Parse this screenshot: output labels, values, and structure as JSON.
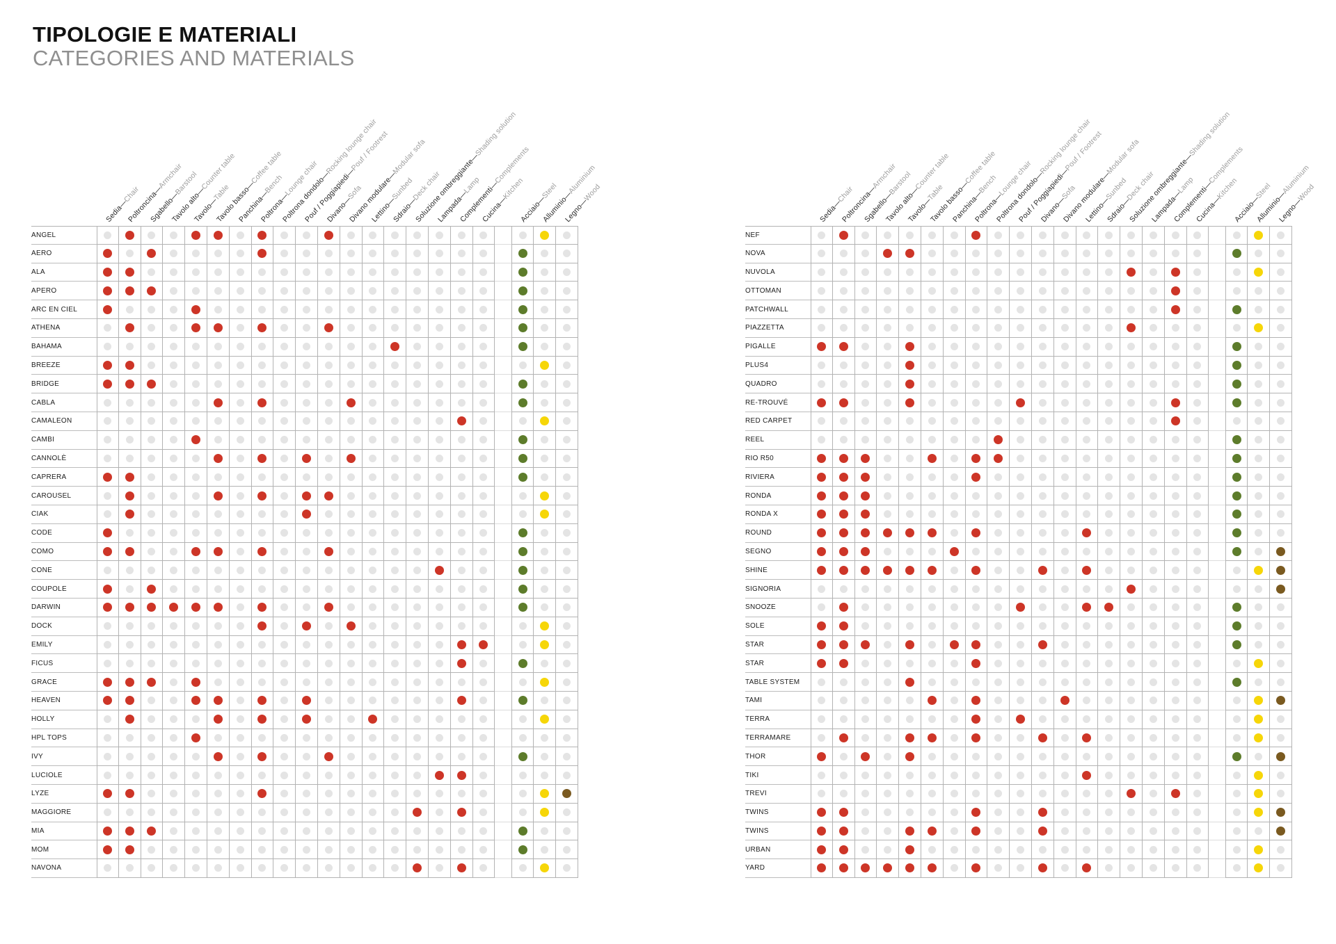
{
  "title": {
    "it": "TIPOLOGIE E MATERIALI",
    "en": "CATEGORIES AND MATERIALS"
  },
  "dot_colors": {
    "active": "#cd3527",
    "inactive": "#e4e4e4"
  },
  "columns": [
    {
      "it": "Sedia",
      "en": "Chair"
    },
    {
      "it": "Poltroncina",
      "en": "Armchair"
    },
    {
      "it": "Sgabello",
      "en": "Barstool"
    },
    {
      "it": "Tavolo alto",
      "en": "Counter table"
    },
    {
      "it": "Tavolo",
      "en": "Table"
    },
    {
      "it": "Tavolo basso",
      "en": "Coffee table"
    },
    {
      "it": "Panchina",
      "en": "Bench"
    },
    {
      "it": "Poltrona",
      "en": "Lounge chair"
    },
    {
      "it": "Poltrona dondolo",
      "en": "Rocking lounge chair"
    },
    {
      "it": "Pouf / Poggiapiedi",
      "en": "Pouf / Footrest"
    },
    {
      "it": "Divano",
      "en": "Sofa"
    },
    {
      "it": "Divano modulare",
      "en": "Modular sofa"
    },
    {
      "it": "Lettino",
      "en": "Sunbed"
    },
    {
      "it": "Sdraio",
      "en": "Deck chair"
    },
    {
      "it": "Soluzione ombreggiante",
      "en": "Shading solution"
    },
    {
      "it": "Lampada",
      "en": "Lamp"
    },
    {
      "it": "Complementi",
      "en": "Complements"
    },
    {
      "it": "Cucina",
      "en": "Kitchen"
    }
  ],
  "material_columns": [
    {
      "it": "Acciaio",
      "en": "Steel",
      "color": "#5d7c2b"
    },
    {
      "it": "Alluminio",
      "en": "Aluminium",
      "color": "#f6d608"
    },
    {
      "it": "Legno",
      "en": "Wood",
      "color": "#7a5a20"
    }
  ],
  "tables": [
    {
      "id": "left",
      "rows": [
        {
          "name": "ANGEL",
          "categories": [
            2,
            5,
            6,
            8,
            11
          ],
          "materials": [
            2
          ]
        },
        {
          "name": "AERO",
          "categories": [
            1,
            3,
            8
          ],
          "materials": [
            1
          ]
        },
        {
          "name": "ALA",
          "categories": [
            1,
            2
          ],
          "materials": [
            1
          ]
        },
        {
          "name": "APERO",
          "categories": [
            1,
            2,
            3
          ],
          "materials": [
            1
          ]
        },
        {
          "name": "ARC EN CIEL",
          "categories": [
            1,
            5
          ],
          "materials": [
            1
          ]
        },
        {
          "name": "ATHENA",
          "categories": [
            2,
            5,
            6,
            8,
            11
          ],
          "materials": [
            1
          ]
        },
        {
          "name": "BAHAMA",
          "categories": [
            14
          ],
          "materials": [
            1
          ]
        },
        {
          "name": "BREEZE",
          "categories": [
            1,
            2
          ],
          "materials": [
            2
          ]
        },
        {
          "name": "BRIDGE",
          "categories": [
            1,
            2,
            3
          ],
          "materials": [
            1
          ]
        },
        {
          "name": "CABLA",
          "categories": [
            6,
            8,
            12
          ],
          "materials": [
            1
          ]
        },
        {
          "name": "CAMALEON",
          "categories": [
            17
          ],
          "materials": [
            2
          ]
        },
        {
          "name": "CAMBI",
          "categories": [
            5
          ],
          "materials": [
            1
          ]
        },
        {
          "name": "CANNOLÈ",
          "categories": [
            6,
            8,
            10,
            12
          ],
          "materials": [
            1
          ]
        },
        {
          "name": "CAPRERA",
          "categories": [
            1,
            2
          ],
          "materials": [
            1
          ]
        },
        {
          "name": "CAROUSEL",
          "categories": [
            2,
            6,
            8,
            10,
            11
          ],
          "materials": [
            2
          ]
        },
        {
          "name": "CIAK",
          "categories": [
            2,
            10
          ],
          "materials": [
            2
          ]
        },
        {
          "name": "CODE",
          "categories": [
            1
          ],
          "materials": [
            1
          ]
        },
        {
          "name": "COMO",
          "categories": [
            1,
            2,
            5,
            6,
            8,
            11
          ],
          "materials": [
            1
          ]
        },
        {
          "name": "CONE",
          "categories": [
            16
          ],
          "materials": [
            1
          ]
        },
        {
          "name": "COUPOLE",
          "categories": [
            1,
            3
          ],
          "materials": [
            1
          ]
        },
        {
          "name": "DARWIN",
          "categories": [
            1,
            2,
            3,
            4,
            5,
            6,
            8,
            11
          ],
          "materials": [
            1
          ]
        },
        {
          "name": "DOCK",
          "categories": [
            8,
            10,
            12
          ],
          "materials": [
            2
          ]
        },
        {
          "name": "EMILY",
          "categories": [
            17,
            18
          ],
          "materials": [
            2
          ]
        },
        {
          "name": "FICUS",
          "categories": [
            17
          ],
          "materials": [
            1
          ]
        },
        {
          "name": "GRACE",
          "categories": [
            1,
            2,
            3,
            5
          ],
          "materials": [
            2
          ]
        },
        {
          "name": "HEAVEN",
          "categories": [
            1,
            2,
            5,
            6,
            8,
            10,
            17
          ],
          "materials": [
            1
          ]
        },
        {
          "name": "HOLLY",
          "categories": [
            2,
            6,
            8,
            10,
            13
          ],
          "materials": [
            2
          ]
        },
        {
          "name": "HPL TOPS",
          "categories": [
            5
          ],
          "materials": []
        },
        {
          "name": "IVY",
          "categories": [
            6,
            8,
            11
          ],
          "materials": [
            1
          ]
        },
        {
          "name": "LUCIOLE",
          "categories": [
            16,
            17
          ],
          "materials": []
        },
        {
          "name": "LYZE",
          "categories": [
            1,
            2,
            8
          ],
          "materials": [
            2,
            3
          ]
        },
        {
          "name": "MAGGIORE",
          "categories": [
            15,
            17
          ],
          "materials": [
            2
          ]
        },
        {
          "name": "MIA",
          "categories": [
            1,
            2,
            3
          ],
          "materials": [
            1
          ]
        },
        {
          "name": "MOM",
          "categories": [
            1,
            2
          ],
          "materials": [
            1
          ]
        },
        {
          "name": "NAVONA",
          "categories": [
            15,
            17
          ],
          "materials": [
            2
          ]
        }
      ]
    },
    {
      "id": "right",
      "rows": [
        {
          "name": "NEF",
          "categories": [
            2,
            8
          ],
          "materials": [
            2
          ]
        },
        {
          "name": "NOVA",
          "categories": [
            4,
            5
          ],
          "materials": [
            1
          ]
        },
        {
          "name": "NUVOLA",
          "categories": [
            15,
            17
          ],
          "materials": [
            2
          ]
        },
        {
          "name": "OTTOMAN",
          "categories": [
            17
          ],
          "materials": []
        },
        {
          "name": "PATCHWALL",
          "categories": [
            17
          ],
          "materials": [
            1
          ]
        },
        {
          "name": "PIAZZETTA",
          "categories": [
            15
          ],
          "materials": [
            2
          ]
        },
        {
          "name": "PIGALLE",
          "categories": [
            1,
            2,
            5
          ],
          "materials": [
            1
          ]
        },
        {
          "name": "PLUS4",
          "categories": [
            5
          ],
          "materials": [
            1
          ]
        },
        {
          "name": "QUADRO",
          "categories": [
            5
          ],
          "materials": [
            1
          ]
        },
        {
          "name": "RE-TROUVÉ",
          "categories": [
            1,
            2,
            5,
            10,
            17
          ],
          "materials": [
            1
          ]
        },
        {
          "name": "RED CARPET",
          "categories": [
            17
          ],
          "materials": []
        },
        {
          "name": "REEL",
          "categories": [
            9
          ],
          "materials": [
            1
          ]
        },
        {
          "name": "RIO R50",
          "categories": [
            1,
            2,
            3,
            6,
            8,
            9
          ],
          "materials": [
            1
          ]
        },
        {
          "name": "RIVIERA",
          "categories": [
            1,
            2,
            3,
            8
          ],
          "materials": [
            1
          ]
        },
        {
          "name": "RONDA",
          "categories": [
            1,
            2,
            3
          ],
          "materials": [
            1
          ]
        },
        {
          "name": "RONDA X",
          "categories": [
            1,
            2,
            3
          ],
          "materials": [
            1
          ]
        },
        {
          "name": "ROUND",
          "categories": [
            1,
            2,
            3,
            4,
            5,
            6,
            8,
            13
          ],
          "materials": [
            1
          ]
        },
        {
          "name": "SEGNO",
          "categories": [
            1,
            2,
            3,
            7
          ],
          "materials": [
            1,
            3
          ]
        },
        {
          "name": "SHINE",
          "categories": [
            1,
            2,
            3,
            4,
            5,
            6,
            8,
            11,
            13
          ],
          "materials": [
            2,
            3
          ]
        },
        {
          "name": "SIGNORIA",
          "categories": [
            15
          ],
          "materials": [
            3
          ]
        },
        {
          "name": "SNOOZE",
          "categories": [
            2,
            10,
            13,
            14
          ],
          "materials": [
            1
          ]
        },
        {
          "name": "SOLE",
          "categories": [
            1,
            2
          ],
          "materials": [
            1
          ]
        },
        {
          "name": "STAR",
          "categories": [
            1,
            2,
            3,
            5,
            7,
            8,
            11
          ],
          "materials": [
            1
          ]
        },
        {
          "name": "STAR",
          "categories": [
            1,
            2,
            8
          ],
          "materials": [
            2
          ]
        },
        {
          "name": "TABLE SYSTEM",
          "categories": [
            5
          ],
          "materials": [
            1
          ]
        },
        {
          "name": "TAMI",
          "categories": [
            6,
            8,
            12
          ],
          "materials": [
            2,
            3
          ]
        },
        {
          "name": "TERRA",
          "categories": [
            8,
            10
          ],
          "materials": [
            2
          ]
        },
        {
          "name": "TERRAMARE",
          "categories": [
            2,
            5,
            6,
            8,
            11,
            13
          ],
          "materials": [
            2
          ]
        },
        {
          "name": "THOR",
          "categories": [
            1,
            3,
            5
          ],
          "materials": [
            1,
            3
          ]
        },
        {
          "name": "TIKI",
          "categories": [
            13
          ],
          "materials": [
            2
          ]
        },
        {
          "name": "TREVI",
          "categories": [
            15,
            17
          ],
          "materials": [
            2
          ]
        },
        {
          "name": "TWINS",
          "categories": [
            1,
            2,
            8,
            11
          ],
          "materials": [
            2,
            3
          ]
        },
        {
          "name": "TWINS",
          "categories": [
            1,
            2,
            5,
            6,
            8,
            11
          ],
          "materials": [
            3
          ]
        },
        {
          "name": "URBAN",
          "categories": [
            1,
            2,
            5
          ],
          "materials": [
            2
          ]
        },
        {
          "name": "YARD",
          "categories": [
            1,
            2,
            3,
            4,
            5,
            6,
            8,
            11,
            13
          ],
          "materials": [
            2
          ]
        }
      ]
    }
  ]
}
